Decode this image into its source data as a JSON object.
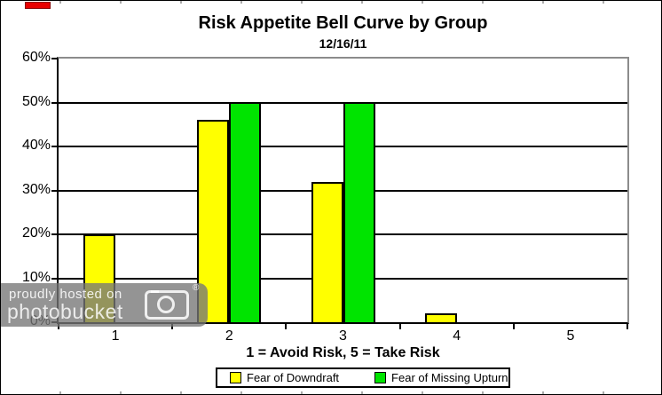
{
  "marker": {
    "color": "#e80000"
  },
  "watermark": {
    "line1": "proudly hosted on",
    "line2": "photobucket",
    "registered": "®"
  },
  "chart_data": {
    "type": "bar",
    "title": "Risk Appetite Bell Curve by Group",
    "subtitle": "12/16/11",
    "categories": [
      "1",
      "2",
      "3",
      "4",
      "5"
    ],
    "series": [
      {
        "name": "Fear of Downdraft",
        "color": "#ffff00",
        "values": [
          20,
          46,
          32,
          2,
          0
        ]
      },
      {
        "name": "Fear of Missing Upturn",
        "color": "#00e400",
        "values": [
          0,
          50,
          50,
          0,
          0
        ]
      }
    ],
    "xlabel": "1 = Avoid Risk, 5 = Take Risk",
    "ylabel": "",
    "ylim": [
      0,
      60
    ],
    "ytick_step": 10,
    "ytick_labels": [
      "60%",
      "50%",
      "40%",
      "30%",
      "20%",
      "10%",
      "0%"
    ],
    "grid": true,
    "legend_position": "bottom",
    "plot_border_color": "#8c8c8c",
    "gridline_color": "#000000"
  }
}
